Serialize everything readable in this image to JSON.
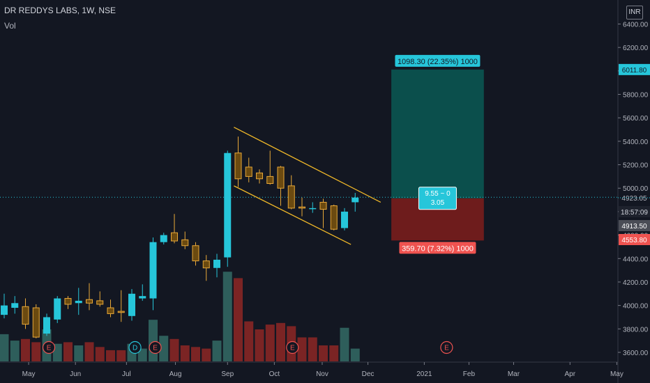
{
  "header": {
    "symbol": "DR REDDYS LABS, 1W, NSE",
    "volume_label": "Vol",
    "currency": "INR"
  },
  "colors": {
    "background": "#131722",
    "up": "#26c6da",
    "down": "#e8a838",
    "vol_up": "#2e5e5b",
    "vol_down": "#7b2424",
    "profit_zone": "#0b4f4c",
    "loss_zone": "#6e1c1c",
    "channel": "#f0b828",
    "price_line": "#26c6da"
  },
  "chart_data": {
    "type": "candlestick",
    "title": "DR REDDYS LABS, 1W, NSE",
    "ylim": [
      3500,
      6550
    ],
    "y_ticks": [
      3600,
      3800,
      4000,
      4200,
      4400,
      4600,
      4800,
      5000,
      5200,
      5400,
      5600,
      5800,
      6000,
      6200,
      6400
    ],
    "y_tick_labels": [
      "3600.00",
      "3800.00",
      "4000.00",
      "4200.00",
      "4400.00",
      "4600.00",
      "4800.00",
      "5000.00",
      "5200.00",
      "5400.00",
      "5600.00",
      "5800.00",
      "6000.00",
      "6200.00",
      "6400.00"
    ],
    "x_labels": [
      {
        "label": "May",
        "week": 2.3
      },
      {
        "label": "Jun",
        "week": 6.7
      },
      {
        "label": "Jul",
        "week": 11.5
      },
      {
        "label": "Aug",
        "week": 16.1
      },
      {
        "label": "Sep",
        "week": 21.0
      },
      {
        "label": "Oct",
        "week": 25.4
      },
      {
        "label": "Nov",
        "week": 29.9
      },
      {
        "label": "Dec",
        "week": 34.2
      },
      {
        "label": "2021",
        "week": 39.5
      },
      {
        "label": "Feb",
        "week": 43.7
      },
      {
        "label": "Mar",
        "week": 47.9
      },
      {
        "label": "Apr",
        "week": 53.2
      },
      {
        "label": "May",
        "week": 57.6
      }
    ],
    "candles": [
      {
        "o": 3920,
        "h": 4100,
        "l": 3890,
        "c": 4000
      },
      {
        "o": 3980,
        "h": 4080,
        "l": 3930,
        "c": 4020
      },
      {
        "o": 3990,
        "h": 4060,
        "l": 3800,
        "c": 3840
      },
      {
        "o": 3980,
        "h": 4010,
        "l": 3720,
        "c": 3730
      },
      {
        "o": 3760,
        "h": 3930,
        "l": 3740,
        "c": 3900
      },
      {
        "o": 3880,
        "h": 4080,
        "l": 3850,
        "c": 4060
      },
      {
        "o": 4060,
        "h": 4080,
        "l": 3970,
        "c": 4010
      },
      {
        "o": 4020,
        "h": 4150,
        "l": 3920,
        "c": 4040
      },
      {
        "o": 4050,
        "h": 4190,
        "l": 3960,
        "c": 4020
      },
      {
        "o": 4040,
        "h": 4120,
        "l": 3990,
        "c": 4010
      },
      {
        "o": 3980,
        "h": 4050,
        "l": 3900,
        "c": 3930
      },
      {
        "o": 3950,
        "h": 4130,
        "l": 3860,
        "c": 3940
      },
      {
        "o": 3910,
        "h": 4140,
        "l": 3870,
        "c": 4100
      },
      {
        "o": 4060,
        "h": 4180,
        "l": 4040,
        "c": 4080
      },
      {
        "o": 4060,
        "h": 4580,
        "l": 3960,
        "c": 4540
      },
      {
        "o": 4540,
        "h": 4620,
        "l": 4520,
        "c": 4600
      },
      {
        "o": 4620,
        "h": 4780,
        "l": 4530,
        "c": 4550
      },
      {
        "o": 4560,
        "h": 4630,
        "l": 4480,
        "c": 4510
      },
      {
        "o": 4510,
        "h": 4540,
        "l": 4340,
        "c": 4380
      },
      {
        "o": 4380,
        "h": 4430,
        "l": 4210,
        "c": 4320
      },
      {
        "o": 4320,
        "h": 4440,
        "l": 4240,
        "c": 4390
      },
      {
        "o": 4410,
        "h": 5320,
        "l": 4330,
        "c": 5300
      },
      {
        "o": 5300,
        "h": 5440,
        "l": 5010,
        "c": 5080
      },
      {
        "o": 5180,
        "h": 5260,
        "l": 5050,
        "c": 5100
      },
      {
        "o": 5130,
        "h": 5160,
        "l": 5040,
        "c": 5080
      },
      {
        "o": 5100,
        "h": 5320,
        "l": 5030,
        "c": 5040
      },
      {
        "o": 5180,
        "h": 5190,
        "l": 4850,
        "c": 5000
      },
      {
        "o": 5020,
        "h": 5110,
        "l": 4820,
        "c": 4830
      },
      {
        "o": 4840,
        "h": 4920,
        "l": 4760,
        "c": 4830
      },
      {
        "o": 4830,
        "h": 4880,
        "l": 4790,
        "c": 4830
      },
      {
        "o": 4880,
        "h": 4910,
        "l": 4660,
        "c": 4820
      },
      {
        "o": 4850,
        "h": 4860,
        "l": 4640,
        "c": 4650
      },
      {
        "o": 4660,
        "h": 4830,
        "l": 4640,
        "c": 4800
      },
      {
        "o": 4880,
        "h": 4960,
        "l": 4800,
        "c": 4920
      }
    ],
    "volume": [
      {
        "v": 1.7,
        "up": true
      },
      {
        "v": 1.3,
        "up": true
      },
      {
        "v": 1.4,
        "up": false
      },
      {
        "v": 1.2,
        "up": false
      },
      {
        "v": 2.0,
        "up": true
      },
      {
        "v": 1.1,
        "up": true
      },
      {
        "v": 1.2,
        "up": false
      },
      {
        "v": 1.0,
        "up": true
      },
      {
        "v": 1.2,
        "up": false
      },
      {
        "v": 0.9,
        "up": false
      },
      {
        "v": 0.7,
        "up": false
      },
      {
        "v": 0.7,
        "up": false
      },
      {
        "v": 1.1,
        "up": true
      },
      {
        "v": 0.8,
        "up": true
      },
      {
        "v": 2.6,
        "up": true
      },
      {
        "v": 1.6,
        "up": true
      },
      {
        "v": 1.4,
        "up": false
      },
      {
        "v": 1.0,
        "up": false
      },
      {
        "v": 0.9,
        "up": false
      },
      {
        "v": 0.8,
        "up": false
      },
      {
        "v": 1.3,
        "up": true
      },
      {
        "v": 5.6,
        "up": true
      },
      {
        "v": 5.2,
        "up": false
      },
      {
        "v": 2.5,
        "up": false
      },
      {
        "v": 2.0,
        "up": false
      },
      {
        "v": 2.3,
        "up": false
      },
      {
        "v": 2.4,
        "up": false
      },
      {
        "v": 2.2,
        "up": false
      },
      {
        "v": 1.5,
        "up": false
      },
      {
        "v": 1.5,
        "up": false
      },
      {
        "v": 1.0,
        "up": false
      },
      {
        "v": 1.0,
        "up": false
      },
      {
        "v": 2.1,
        "up": true
      },
      {
        "v": 0.8,
        "up": true
      }
    ],
    "earnings_markers": [
      {
        "label": "E",
        "week": 4.2
      },
      {
        "label": "D",
        "week": 12.3
      },
      {
        "label": "E",
        "week": 14.2
      },
      {
        "label": "E",
        "week": 27.1
      },
      {
        "label": "E",
        "week": 41.6
      }
    ],
    "channel": {
      "upper": {
        "from": {
          "week": 21.6,
          "price": 5520
        },
        "to": {
          "week": 35.4,
          "price": 4880
        }
      },
      "lower": {
        "from": {
          "week": 21.6,
          "price": 5020
        },
        "to": {
          "week": 32.6,
          "price": 4520
        }
      }
    },
    "position": {
      "from_week": 36.4,
      "to_week": 45.1,
      "entry": 4913.5,
      "target": 6011.8,
      "stop": 4553.8,
      "target_label": "1098.30 (22.35%) 1000",
      "stop_label": "359.70 (7.32%) 1000",
      "ratio_label_1": "9.55 ~ 0",
      "ratio_label_2": "3.05"
    },
    "price_labels": {
      "target": "6011.80",
      "current": "4923.05",
      "countdown": "18:57:09",
      "entry": "4913.50",
      "stop": "4553.80"
    }
  }
}
